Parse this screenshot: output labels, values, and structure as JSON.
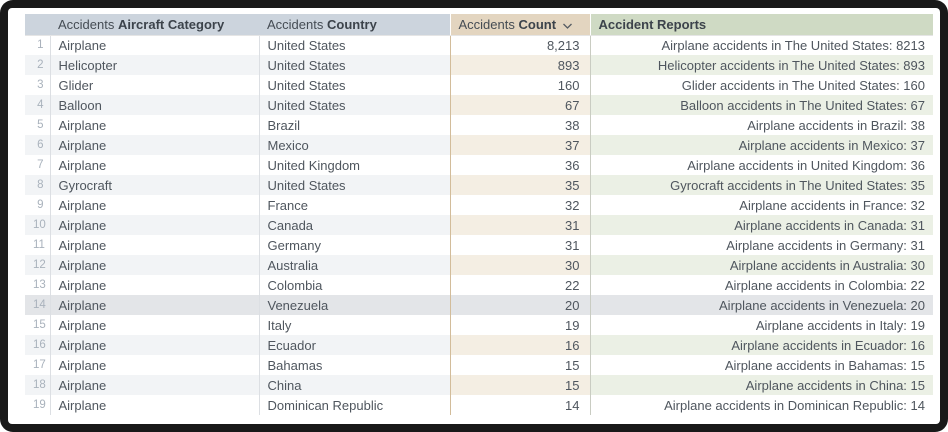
{
  "table": {
    "columns": [
      {
        "prefix": "Accidents",
        "label": "Aircraft Category"
      },
      {
        "prefix": "Accidents",
        "label": "Country"
      },
      {
        "prefix": "Accidents",
        "label": "Count",
        "sort": "descending",
        "sort_icon": "chevron-down-icon"
      },
      {
        "prefix": "",
        "label": "Accident Reports"
      }
    ],
    "highlighted_row": 14,
    "rows": [
      {
        "n": 1,
        "category": "Airplane",
        "country": "United States",
        "count": "8,213",
        "report": "Airplane accidents in The United States: 8213"
      },
      {
        "n": 2,
        "category": "Helicopter",
        "country": "United States",
        "count": "893",
        "report": "Helicopter accidents in The United States: 893"
      },
      {
        "n": 3,
        "category": "Glider",
        "country": "United States",
        "count": "160",
        "report": "Glider accidents in The United States: 160"
      },
      {
        "n": 4,
        "category": "Balloon",
        "country": "United States",
        "count": "67",
        "report": "Balloon accidents in The United States: 67"
      },
      {
        "n": 5,
        "category": "Airplane",
        "country": "Brazil",
        "count": "38",
        "report": "Airplane accidents in Brazil: 38"
      },
      {
        "n": 6,
        "category": "Airplane",
        "country": "Mexico",
        "count": "37",
        "report": "Airplane accidents in Mexico: 37"
      },
      {
        "n": 7,
        "category": "Airplane",
        "country": "United Kingdom",
        "count": "36",
        "report": "Airplane accidents in United Kingdom: 36"
      },
      {
        "n": 8,
        "category": "Gyrocraft",
        "country": "United States",
        "count": "35",
        "report": "Gyrocraft accidents in The United States: 35"
      },
      {
        "n": 9,
        "category": "Airplane",
        "country": "France",
        "count": "32",
        "report": "Airplane accidents in France: 32"
      },
      {
        "n": 10,
        "category": "Airplane",
        "country": "Canada",
        "count": "31",
        "report": "Airplane accidents in Canada: 31"
      },
      {
        "n": 11,
        "category": "Airplane",
        "country": "Germany",
        "count": "31",
        "report": "Airplane accidents in Germany: 31"
      },
      {
        "n": 12,
        "category": "Airplane",
        "country": "Australia",
        "count": "30",
        "report": "Airplane accidents in Australia: 30"
      },
      {
        "n": 13,
        "category": "Airplane",
        "country": "Colombia",
        "count": "22",
        "report": "Airplane accidents in Colombia: 22"
      },
      {
        "n": 14,
        "category": "Airplane",
        "country": "Venezuela",
        "count": "20",
        "report": "Airplane accidents in Venezuela: 20"
      },
      {
        "n": 15,
        "category": "Airplane",
        "country": "Italy",
        "count": "19",
        "report": "Airplane accidents in Italy: 19"
      },
      {
        "n": 16,
        "category": "Airplane",
        "country": "Ecuador",
        "count": "16",
        "report": "Airplane accidents in Ecuador: 16"
      },
      {
        "n": 17,
        "category": "Airplane",
        "country": "Bahamas",
        "count": "15",
        "report": "Airplane accidents in Bahamas: 15"
      },
      {
        "n": 18,
        "category": "Airplane",
        "country": "China",
        "count": "15",
        "report": "Airplane accidents in China: 15"
      },
      {
        "n": 19,
        "category": "Airplane",
        "country": "Dominican Republic",
        "count": "14",
        "report": "Airplane accidents in Dominican Republic: 14"
      }
    ]
  },
  "colors": {
    "frame": "#191919",
    "header_blue": "#ccd4dd",
    "header_tan": "#e3d5c0",
    "header_green": "#cfdac4",
    "stripe_gray": "#f2f4f6",
    "stripe_tan": "#f4eee3",
    "stripe_green": "#ebf0e5",
    "highlight_row": "#e3e5e8",
    "text": "#4f565e",
    "row_number_text": "#a9b2bc"
  }
}
